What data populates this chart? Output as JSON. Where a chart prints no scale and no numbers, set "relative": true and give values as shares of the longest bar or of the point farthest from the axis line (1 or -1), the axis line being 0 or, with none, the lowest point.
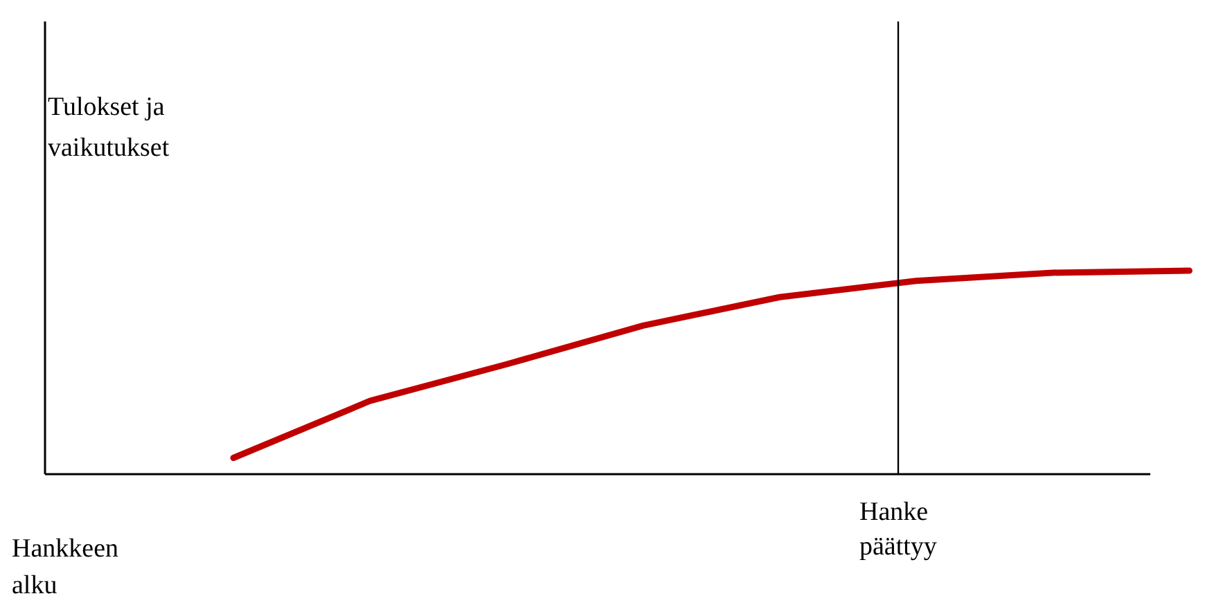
{
  "chart_data": {
    "type": "line",
    "relative": true,
    "ylabel": "Tulokset ja vaikutukset",
    "line_style": "solid",
    "categories": [
      null,
      null,
      null,
      null,
      null,
      null,
      null,
      null
    ],
    "series": [
      {
        "color": "#c00000",
        "values": [
          0.08,
          0.36,
          0.54,
          0.73,
          0.87,
          0.95,
          0.99,
          1.0
        ]
      }
    ],
    "annotations": [
      "Hanke päättyy",
      "Hankkeen alku"
    ]
  }
}
